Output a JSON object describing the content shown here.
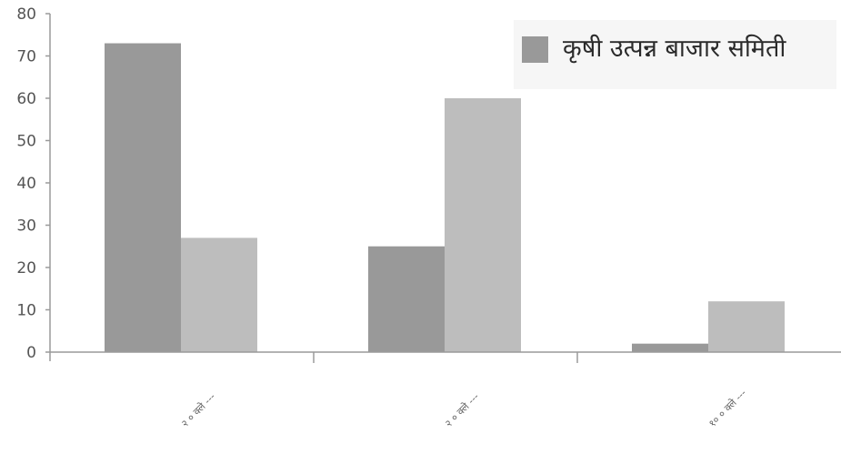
{
  "chart_data": {
    "type": "bar",
    "categories": [
      "२ ० क्ले ---",
      "२ ० क्ले ---",
      "१० ० क्ले ---"
    ],
    "series": [
      {
        "name": "कृषी उत्पन्न बाजार समिती",
        "values": [
          73,
          25,
          2
        ],
        "color": "#999999"
      },
      {
        "values": [
          27,
          60,
          12
        ],
        "color": "#bdbdbd"
      }
    ],
    "ylim": [
      0,
      80
    ],
    "yticks": [
      0,
      10,
      20,
      30,
      40,
      50,
      60,
      70,
      80
    ],
    "legend_position": "top-right",
    "grid": false
  }
}
